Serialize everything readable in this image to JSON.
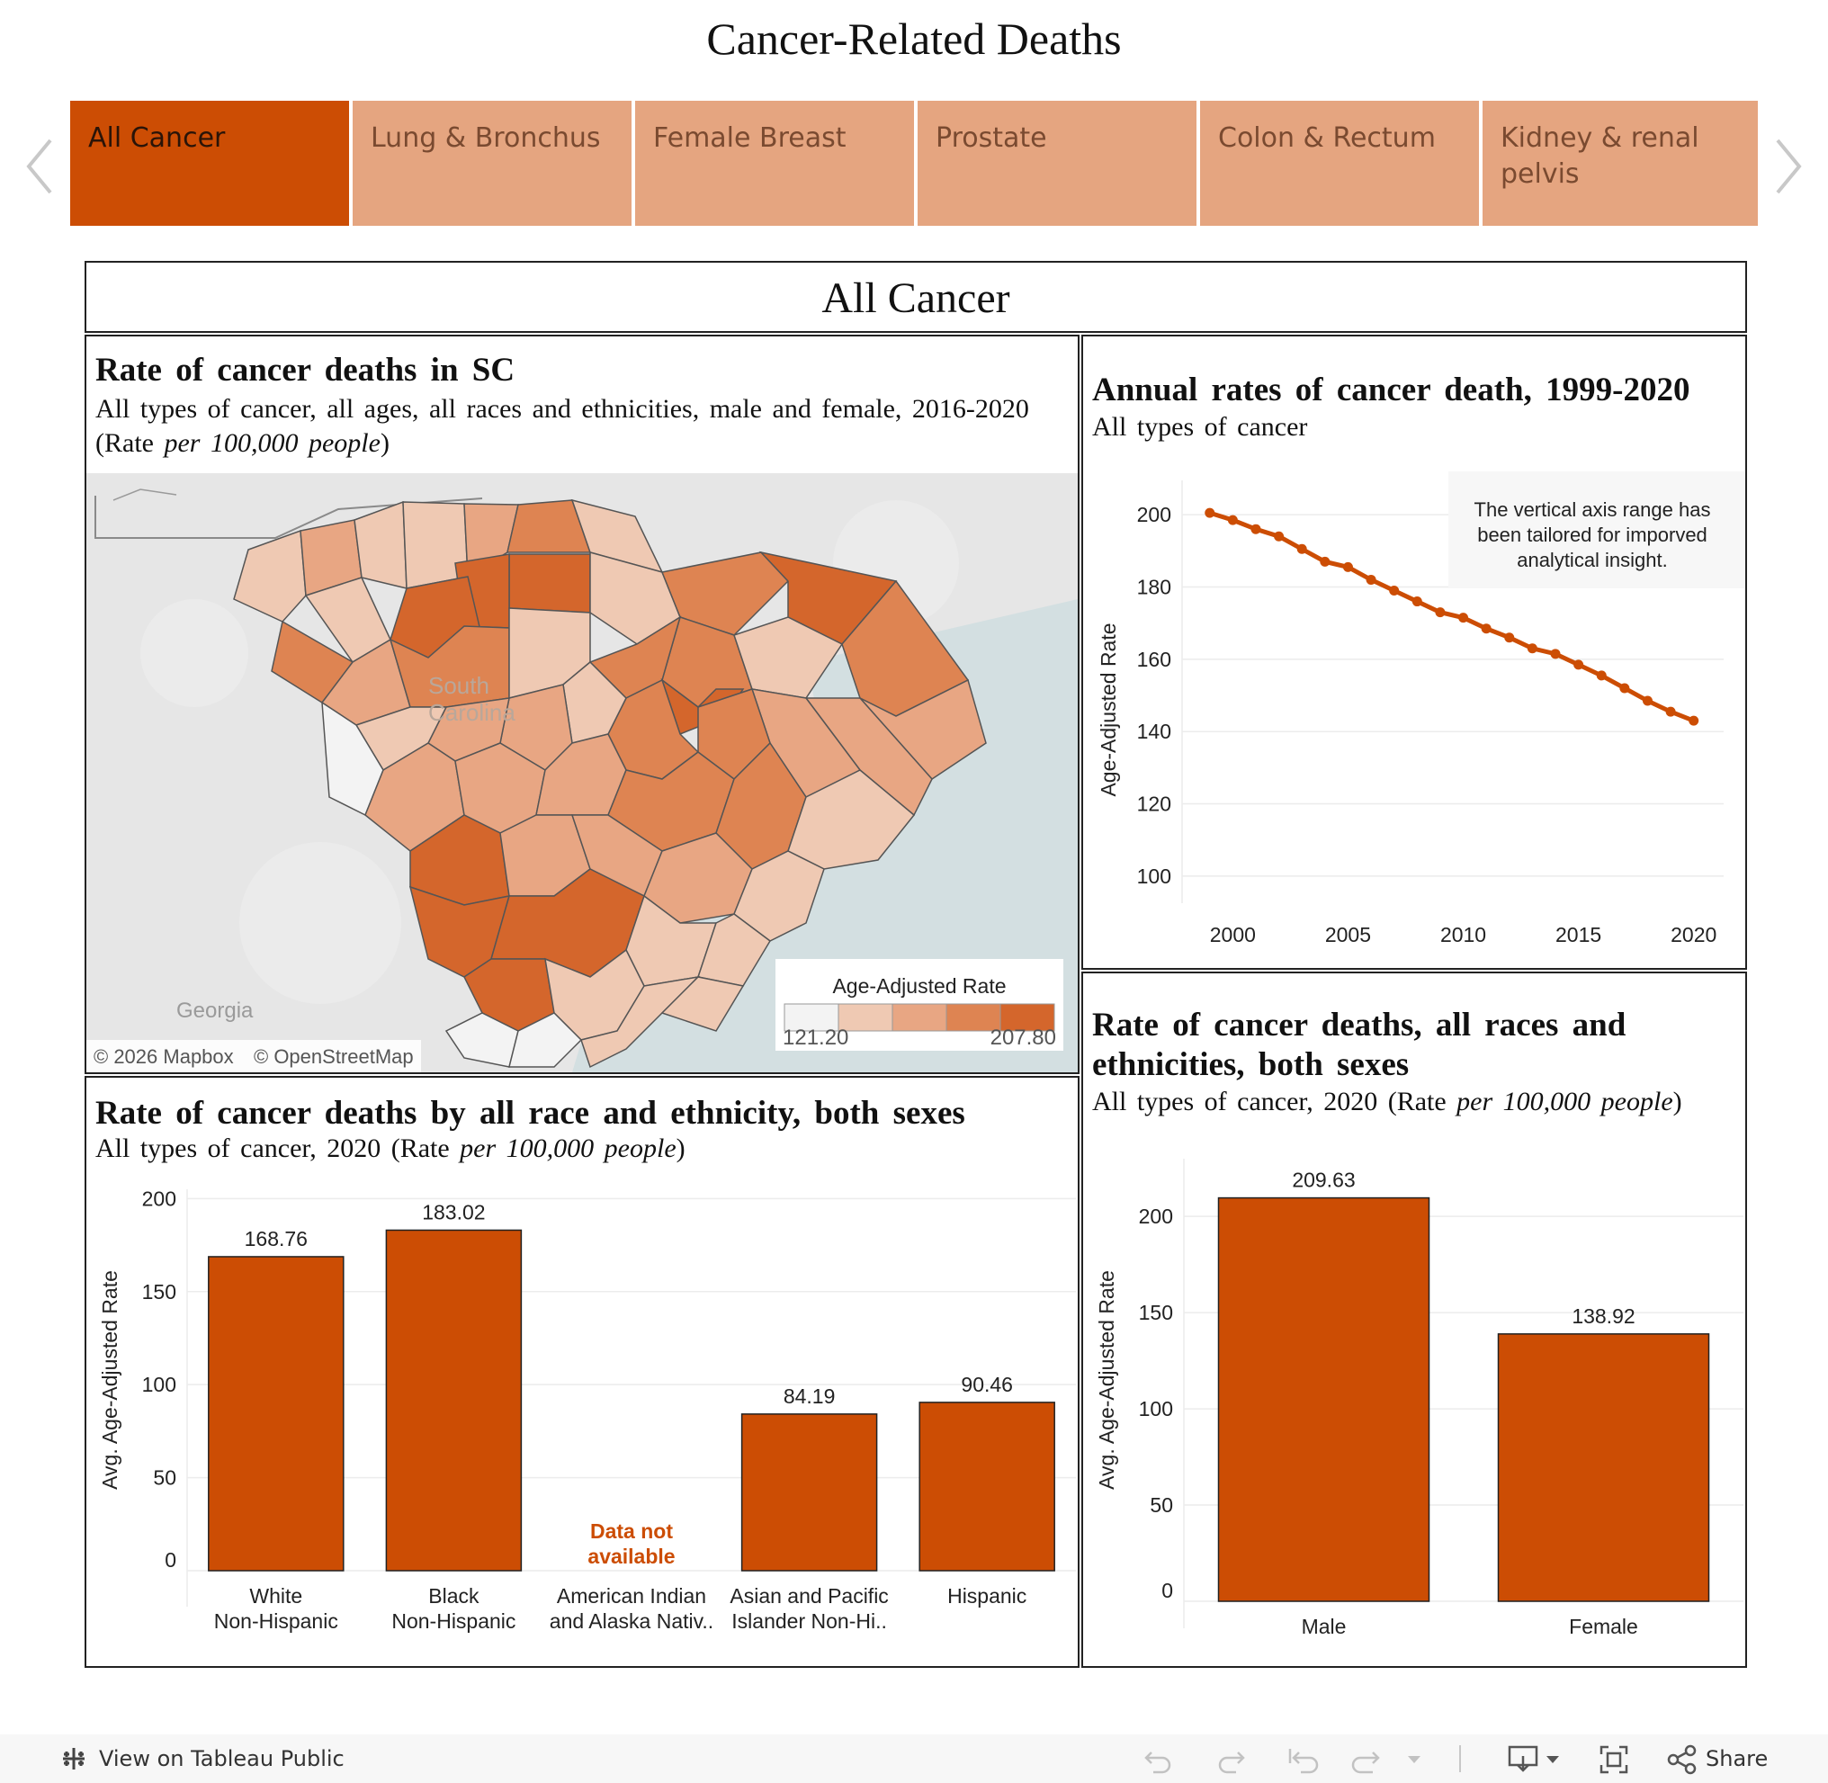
{
  "header": {
    "title": "Cancer-Related Deaths"
  },
  "tabs": [
    {
      "label": "All Cancer",
      "active": true
    },
    {
      "label": "Lung & Bronchus",
      "active": false
    },
    {
      "label": "Female Breast",
      "active": false
    },
    {
      "label": "Prostate",
      "active": false
    },
    {
      "label": "Colon & Rectum",
      "active": false
    },
    {
      "label": "Kidney & renal pelvis",
      "active": false
    }
  ],
  "section": {
    "title": "All Cancer"
  },
  "map_panel": {
    "title": "Rate of cancer deaths in SC",
    "subtitle": "All types of cancer, all ages, all races and ethnicities, male and female, 2016-2020 (Rate",
    "subtitle_italic": "per 100,000 people",
    "subtitle_end": ")",
    "state_label_1": "South",
    "state_label_2": "Carolina",
    "neighbor_label": "Georgia",
    "attribution_mapbox": "© 2026 Mapbox",
    "attribution_osm": "© OpenStreetMap",
    "legend": {
      "title": "Age-Adjusted Rate",
      "min": "121.20",
      "max": "207.80",
      "colors": [
        "#f3f3f3",
        "#efc9b3",
        "#e8a683",
        "#de8452",
        "#d4662c"
      ]
    }
  },
  "line_panel": {
    "title": "Annual rates of cancer death, 1999-2020",
    "subtitle": "All types of cancer",
    "note_line1": "The vertical axis range has",
    "note_line2": "been tailored  for imporved",
    "note_line3": "analytical insight."
  },
  "race_panel": {
    "title": "Rate of cancer deaths by all race and ethnicity, both sexes",
    "subtitle": "All types of cancer, 2020 (Rate",
    "subtitle_italic": "per 100,000 people",
    "subtitle_end": ")",
    "na_line1": "Data not",
    "na_line2": "available"
  },
  "sex_panel": {
    "title_line1": "Rate of cancer deaths, all races and",
    "title_line2": "ethnicities, both sexes",
    "subtitle": "All types of cancer, 2020 (Rate",
    "subtitle_italic": "per 100,000 people",
    "subtitle_end": ")"
  },
  "chart_data": [
    {
      "type": "line",
      "title": "Annual rates of cancer death, 1999-2020",
      "subtitle": "All types of cancer",
      "xlabel": "",
      "ylabel": "Age-Adjusted Rate",
      "ylim": [
        95,
        207
      ],
      "xticks": [
        2000,
        2005,
        2010,
        2015,
        2020
      ],
      "yticks": [
        100,
        120,
        140,
        160,
        180,
        200
      ],
      "x": [
        1999,
        2000,
        2001,
        2002,
        2003,
        2004,
        2005,
        2006,
        2007,
        2008,
        2009,
        2010,
        2011,
        2012,
        2013,
        2014,
        2015,
        2016,
        2017,
        2018,
        2019,
        2020
      ],
      "values": [
        200.5,
        198.5,
        196.0,
        194.0,
        190.5,
        187.0,
        185.5,
        182.0,
        179.0,
        176.0,
        173.0,
        171.5,
        168.5,
        166.0,
        163.0,
        161.5,
        158.5,
        155.5,
        152.0,
        148.5,
        145.5,
        143.0
      ],
      "color": "#cc4d04"
    },
    {
      "type": "bar",
      "title": "Rate of cancer deaths by all race and ethnicity, both sexes",
      "ylabel": "Avg. Age-Adjusted Rate",
      "ylim": [
        0,
        205
      ],
      "yticks": [
        0,
        50,
        100,
        150,
        200
      ],
      "categories": [
        {
          "line1": "White",
          "line2": "Non-Hispanic"
        },
        {
          "line1": "Black",
          "line2": "Non-Hispanic"
        },
        {
          "line1": "American Indian",
          "line2": "and Alaska Nativ.."
        },
        {
          "line1": "Asian and Pacific",
          "line2": "Islander Non-Hi.."
        },
        {
          "line1": "Hispanic",
          "line2": ""
        }
      ],
      "values": [
        168.76,
        183.02,
        null,
        84.19,
        90.46
      ],
      "labels": [
        "168.76",
        "183.02",
        "",
        "84.19",
        "90.46"
      ],
      "color": "#cc4d04"
    },
    {
      "type": "bar",
      "title": "Rate of cancer deaths, all races and ethnicities, both sexes",
      "ylabel": "Avg. Age-Adjusted Rate",
      "ylim": [
        0,
        230
      ],
      "yticks": [
        0,
        50,
        100,
        150,
        200
      ],
      "categories": [
        {
          "line1": "Male"
        },
        {
          "line1": "Female"
        }
      ],
      "values": [
        209.63,
        138.92
      ],
      "labels": [
        "209.63",
        "138.92"
      ],
      "color": "#cc4d04"
    }
  ],
  "toolbar": {
    "view_label": "View on Tableau Public",
    "share_label": "Share"
  }
}
